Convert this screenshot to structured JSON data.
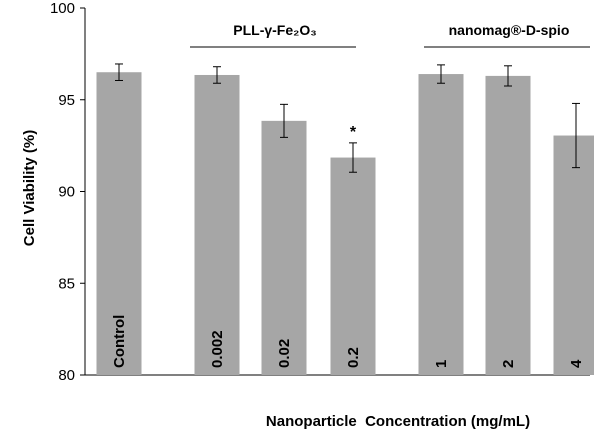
{
  "chart_data": {
    "type": "bar",
    "ylabel": "Cell Viability (%)",
    "xlabel": "Nanoparticle  Concentration (mg/mL)",
    "ylim": [
      80,
      100
    ],
    "yticks": [
      80,
      85,
      90,
      95,
      100
    ],
    "grid": false,
    "bar_color": "#a6a6a6",
    "categories": [
      "Control",
      "0.002",
      "0.02",
      "0.2",
      "1",
      "2",
      "4"
    ],
    "values": [
      96.5,
      96.35,
      93.85,
      91.85,
      96.4,
      96.3,
      93.05
    ],
    "errors": [
      0.45,
      0.45,
      0.9,
      0.8,
      0.5,
      0.55,
      1.75
    ],
    "groups": [
      {
        "label": "PLL-γ-Fe₂O₃",
        "categories": [
          "0.002",
          "0.02",
          "0.2"
        ]
      },
      {
        "label": "nanomag®-D-spio",
        "categories": [
          "1",
          "2",
          "4"
        ]
      }
    ],
    "annotations": [
      {
        "category": "0.2",
        "text": "*"
      }
    ]
  }
}
